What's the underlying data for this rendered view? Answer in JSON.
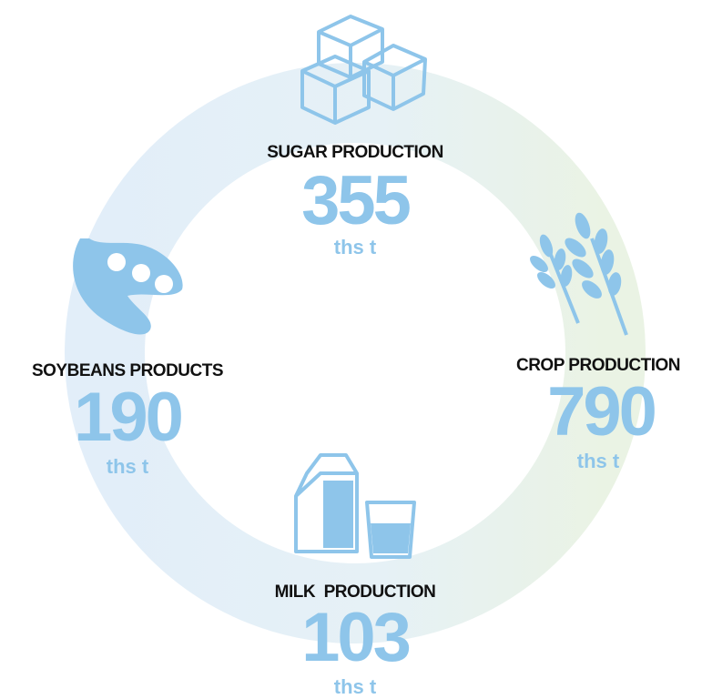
{
  "items": [
    {
      "label": "SUGAR PRODUCTION",
      "value": "355",
      "unit": "ths t"
    },
    {
      "label": "SOYBEANS PRODUCTS",
      "value": "190",
      "unit": "ths t"
    },
    {
      "label": "CROP PRODUCTION",
      "value": "790",
      "unit": "ths t"
    },
    {
      "label": "MILK  PRODUCTION",
      "value": "103",
      "unit": "ths t"
    }
  ]
}
